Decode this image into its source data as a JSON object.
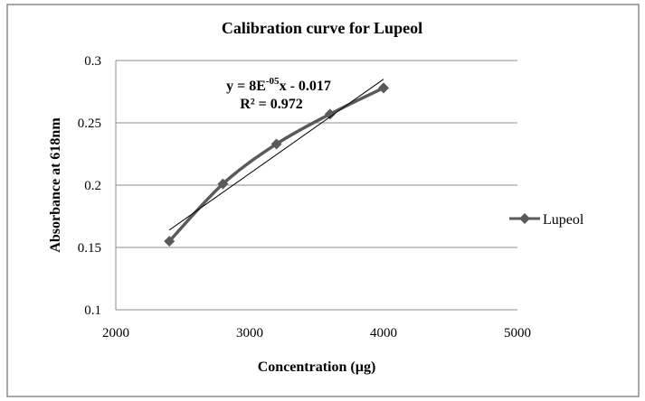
{
  "chart_data": {
    "type": "scatter",
    "title": "Calibration curve for Lupeol",
    "xlabel": "Concentration (µg)",
    "ylabel": "Absorbance at 618nm",
    "xlim": [
      2000,
      5000
    ],
    "ylim": [
      0.1,
      0.3
    ],
    "x_ticks": [
      2000,
      3000,
      4000,
      5000
    ],
    "x_tick_labels": [
      "2000",
      "3000",
      "4000",
      "5000"
    ],
    "y_ticks": [
      0.1,
      0.15,
      0.2,
      0.25,
      0.3
    ],
    "y_tick_labels": [
      "0.1",
      "0.15",
      "0.2",
      "0.25",
      "0.3"
    ],
    "grid": "horizontal",
    "legend_position": "right",
    "series": [
      {
        "name": "Lupeol",
        "color": "#5a5a5a",
        "marker": "diamond",
        "smooth": true,
        "x": [
          2400,
          2800,
          3200,
          3600,
          4000
        ],
        "y": [
          0.155,
          0.201,
          0.233,
          0.257,
          0.278
        ]
      }
    ],
    "trendline": {
      "type": "linear",
      "color": "#000000",
      "x": [
        2400,
        4000
      ],
      "y": [
        0.164,
        0.285
      ],
      "equation": {
        "prefix": "y = 8E",
        "exponent": "-05",
        "suffix": "x - 0.017"
      },
      "r_squared": "R² = 0.972"
    }
  }
}
